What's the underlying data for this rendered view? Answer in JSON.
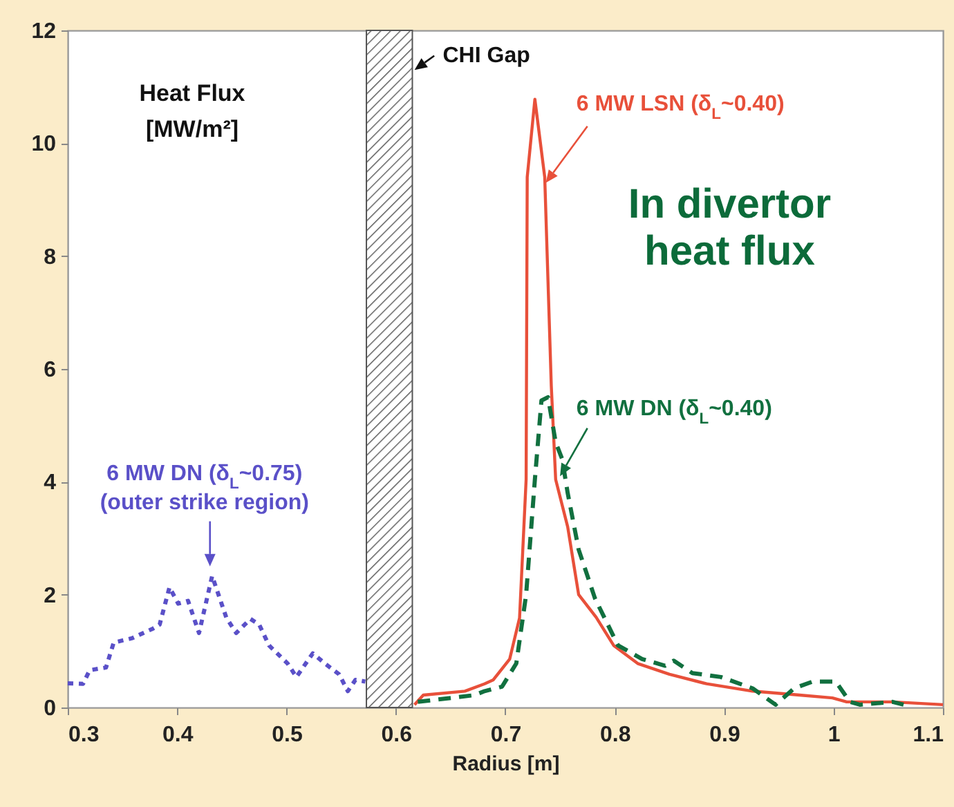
{
  "chart_data": {
    "type": "line",
    "xlabel": "Radius [m]",
    "ylabel": "Heat Flux\n[MW/m²]",
    "xlim": [
      0.3,
      1.1
    ],
    "xticks": [
      0.3,
      0.4,
      0.5,
      0.6,
      0.7,
      0.8,
      0.9,
      1,
      1.1
    ],
    "ylim": [
      0,
      12
    ],
    "yticks": [
      0,
      2,
      4,
      6,
      8,
      10,
      12
    ],
    "annotations": [
      "In divertor\nheat flux"
    ],
    "bands": [
      {
        "axis": "x",
        "from": 0.573,
        "to": 0.615,
        "label": "CHI Gap",
        "color": "#555555"
      }
    ],
    "series": [
      {
        "name": "6 MW DN (δ$_{L}$~0.75)\n(outer strike region)",
        "color": "#5a50c8",
        "line_style": "dotted",
        "x": [
          0.3,
          0.314,
          0.32,
          0.335,
          0.342,
          0.359,
          0.378,
          0.384,
          0.393,
          0.401,
          0.41,
          0.42,
          0.432,
          0.445,
          0.454,
          0.467,
          0.475,
          0.484,
          0.501,
          0.509,
          0.524,
          0.535,
          0.548,
          0.556,
          0.563,
          0.572
        ],
        "values": [
          0.43,
          0.42,
          0.66,
          0.71,
          1.15,
          1.23,
          1.4,
          1.47,
          2.13,
          1.84,
          1.89,
          1.32,
          2.33,
          1.59,
          1.32,
          1.57,
          1.47,
          1.1,
          0.78,
          0.54,
          0.96,
          0.78,
          0.59,
          0.29,
          0.49,
          0.46
        ]
      },
      {
        "name": "6 MW LSN (δ$_{L}$~0.40)",
        "color": "#e8503a",
        "line_style": "solid",
        "x": [
          0.617,
          0.625,
          0.663,
          0.681,
          0.689,
          0.704,
          0.713,
          0.719,
          0.72,
          0.727,
          0.736,
          0.742,
          0.746,
          0.757,
          0.767,
          0.783,
          0.799,
          0.821,
          0.85,
          0.884,
          0.926,
          0.969,
          0.999,
          1.012,
          1.054,
          1.1
        ],
        "values": [
          0.05,
          0.22,
          0.29,
          0.42,
          0.49,
          0.86,
          1.59,
          4.04,
          9.4,
          10.78,
          9.4,
          5.7,
          4.04,
          3.2,
          2.0,
          1.6,
          1.1,
          0.78,
          0.59,
          0.42,
          0.29,
          0.22,
          0.17,
          0.1,
          0.1,
          0.05
        ]
      },
      {
        "name": "6 MW DN (δ$_{L}$~0.40)",
        "color": "#11703f",
        "line_style": "dashed",
        "x": [
          0.62,
          0.672,
          0.681,
          0.697,
          0.71,
          0.719,
          0.727,
          0.733,
          0.739,
          0.746,
          0.752,
          0.757,
          0.767,
          0.782,
          0.803,
          0.825,
          0.846,
          0.854,
          0.871,
          0.897,
          0.926,
          0.947,
          0.964,
          0.981,
          1.002,
          1.015,
          1.024,
          1.054,
          1.064
        ],
        "values": [
          0.1,
          0.22,
          0.29,
          0.37,
          0.78,
          2.0,
          4.04,
          5.44,
          5.5,
          4.7,
          4.4,
          3.8,
          2.8,
          1.93,
          1.1,
          0.86,
          0.74,
          0.83,
          0.61,
          0.54,
          0.34,
          0.05,
          0.34,
          0.46,
          0.46,
          0.1,
          0.05,
          0.1,
          0.05
        ]
      }
    ]
  }
}
